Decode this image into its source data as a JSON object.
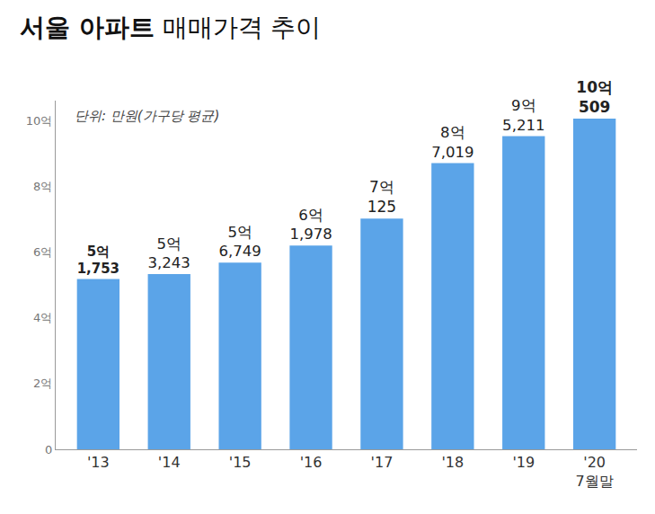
{
  "chart_data": {
    "type": "bar",
    "title": "서울 아파트 매매가격 추이",
    "subtitle": "단위: 만원(가구당 평균)",
    "categories": [
      "'13",
      "'14",
      "'15",
      "'16",
      "'17",
      "'18",
      "'19",
      "'20\n7월말"
    ],
    "values": [
      5.1753,
      5.3243,
      5.6749,
      6.1978,
      7.0125,
      8.7019,
      9.5211,
      10.0509
    ],
    "value_labels": [
      "5억\n1,753",
      "5억\n3,243",
      "5억\n6,749",
      "6억\n1,978",
      "7억\n125",
      "8억\n7,019",
      "9억\n5,211",
      "10억\n509"
    ],
    "data_labels": true,
    "color": "#5ba4e8",
    "ylim": [
      0,
      10.6
    ],
    "yticks": [
      0,
      {
        "value": 2,
        "label": "2억"
      },
      {
        "value": 4,
        "label": "4억"
      },
      {
        "value": 6,
        "label": "6억"
      },
      {
        "value": 8,
        "label": "8억"
      },
      {
        "value": 10,
        "label": "10억"
      }
    ],
    "grid": false
  }
}
